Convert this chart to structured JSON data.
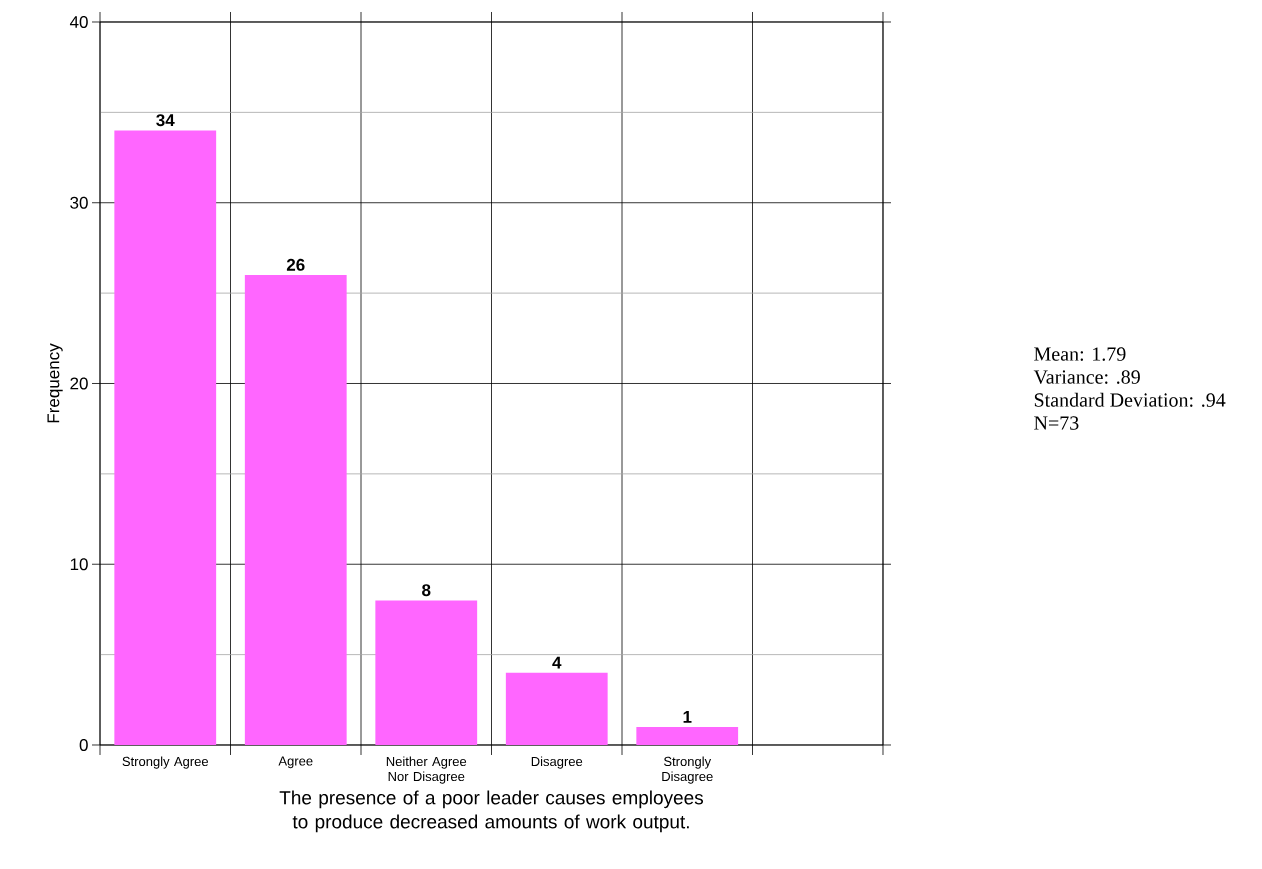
{
  "chart_data": {
    "type": "bar",
    "xlabel": "The presence of a poor leader causes employees to produce decreased amounts of work output.",
    "ylabel": "Frequency",
    "categories": [
      "Strongly Agree",
      "Agree",
      "Neither Agree Nor Disagree",
      "Disagree",
      "Strongly Disagree",
      null
    ],
    "values": [
      34,
      26,
      8,
      4,
      1,
      null
    ],
    "color": "#ff66ff",
    "ylim": [
      0,
      40
    ],
    "yticks": [
      0,
      10,
      20,
      30,
      40
    ],
    "grid": true,
    "data_labels": true,
    "annotations": [
      "Mean: 1.79",
      "Variance: .89",
      "Standard Deviation: .94",
      "N=73"
    ]
  }
}
